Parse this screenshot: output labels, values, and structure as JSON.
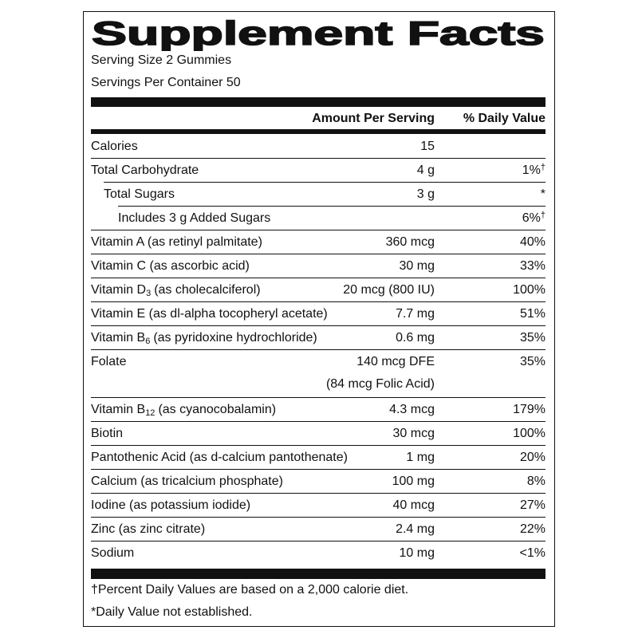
{
  "title": "Supplement Facts",
  "serving_size": "Serving Size 2 Gummies",
  "servings_per_container": "Servings Per Container 50",
  "header": {
    "amount": "Amount Per Serving",
    "daily_value": "% Daily Value"
  },
  "rows": [
    {
      "name": "Calories",
      "amount": "15"
    },
    {
      "name": "Total Carbohydrate",
      "amount": "4 g",
      "dv": "1%",
      "dv_mark": "†"
    },
    {
      "name": "Total Sugars",
      "amount": "3 g",
      "dv": "*"
    },
    {
      "name": "Includes 3 g Added Sugars",
      "dv": "6%",
      "dv_mark": "†"
    },
    {
      "name": "Vitamin A (as retinyl palmitate)",
      "amount": "360 mcg",
      "dv": "40%"
    },
    {
      "name": "Vitamin C (as ascorbic acid)",
      "amount": "30 mg",
      "dv": "33%"
    },
    {
      "name": "Vitamin D",
      "name_sub": "3",
      "name_rest": "(as cholecalciferol)",
      "amount": "20 mcg (800 IU)",
      "dv": "100%"
    },
    {
      "name": "Vitamin E (as dl-alpha tocopheryl acetate)",
      "amount": "7.7 mg",
      "dv": "51%"
    },
    {
      "name": "Vitamin B",
      "name_sub": "6",
      "name_rest": "(as pyridoxine hydrochloride)",
      "amount": "0.6 mg",
      "dv": "35%"
    },
    {
      "name": "Folate",
      "amount": "140 mcg DFE",
      "amount_2": "(84 mcg Folic Acid)",
      "dv": "35%"
    },
    {
      "name": "Vitamin B",
      "name_sub": "12",
      "name_rest": "(as cyanocobalamin)",
      "amount": "4.3 mcg",
      "dv": "179%"
    },
    {
      "name": "Biotin",
      "amount": "30 mcg",
      "dv": "100%"
    },
    {
      "name": "Pantothenic Acid (as d-calcium pantothenate)",
      "amount": "1 mg",
      "dv": "20%"
    },
    {
      "name": "Calcium (as tricalcium phosphate)",
      "amount": "100 mg",
      "dv": "8%"
    },
    {
      "name": "Iodine (as potassium iodide)",
      "amount": "40 mcg",
      "dv": "27%"
    },
    {
      "name": "Zinc (as zinc citrate)",
      "amount": "2.4 mg",
      "dv": "22%"
    },
    {
      "name": "Sodium",
      "amount": "10 mg",
      "dv": "<1%"
    }
  ],
  "footnotes": [
    "†Percent Daily Values are based on a 2,000 calorie diet.",
    "*Daily Value not established."
  ]
}
